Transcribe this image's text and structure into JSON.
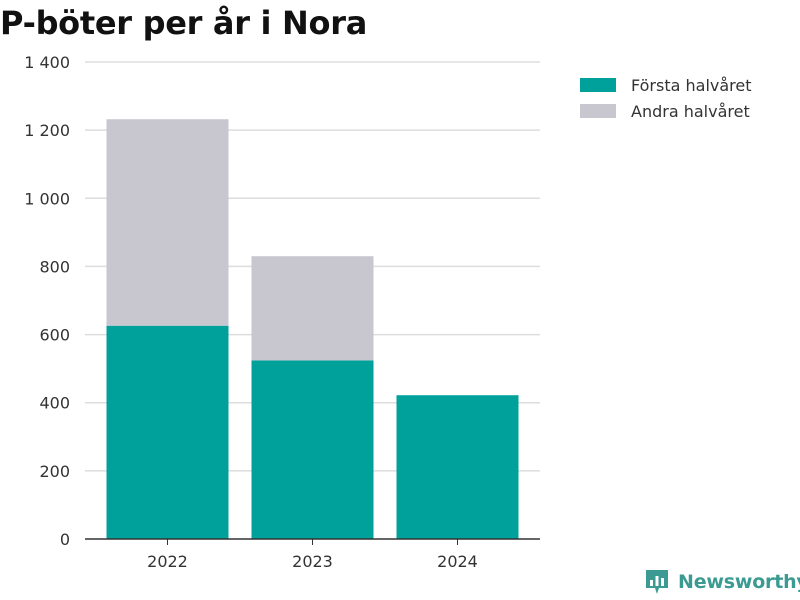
{
  "chart_data": {
    "type": "bar",
    "stacked": true,
    "title": "P-böter per år i Nora",
    "xlabel": "",
    "ylabel": "",
    "categories": [
      "2022",
      "2023",
      "2024"
    ],
    "series": [
      {
        "name": "Första halvåret",
        "color": "#00a19a",
        "values": [
          626,
          524,
          422
        ]
      },
      {
        "name": "Andra halvåret",
        "color": "#c8c7cf",
        "values": [
          606,
          306,
          0
        ]
      }
    ],
    "ylim": [
      0,
      1400
    ],
    "yticks": [
      0,
      200,
      400,
      600,
      800,
      1000,
      1200,
      1400
    ],
    "ytick_labels": [
      "0",
      "200",
      "400",
      "600",
      "800",
      "1 000",
      "1 200",
      "1 400"
    ],
    "grid": true,
    "legend_position": "top-right"
  },
  "brand": {
    "name": "Newsworthy",
    "color": "#3b9a91",
    "icon": "newsworthy-logo-icon"
  }
}
